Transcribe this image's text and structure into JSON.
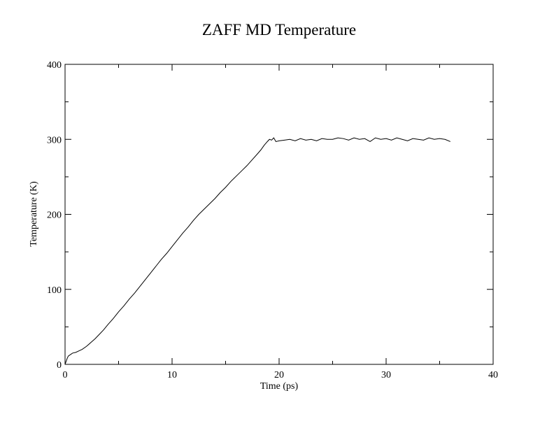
{
  "chart_data": {
    "type": "line",
    "title": "ZAFF MD Temperature",
    "xlabel": "Time (ps)",
    "ylabel": "Temperature (K)",
    "xlim": [
      0,
      40
    ],
    "ylim": [
      0,
      400
    ],
    "x_ticks": [
      0,
      10,
      20,
      30,
      40
    ],
    "y_ticks": [
      0,
      100,
      200,
      300,
      400
    ],
    "x_minor_ticks": [
      5,
      15,
      25,
      35
    ],
    "y_minor_ticks": [
      50,
      150,
      250,
      350
    ],
    "grid": false,
    "legend": "none",
    "line_color": "#000000",
    "series": [
      {
        "x": [
          0,
          0.1,
          0.2,
          0.3,
          0.5,
          0.7,
          1.0,
          1.3,
          1.6,
          2.0,
          2.4,
          2.8,
          3.2,
          3.6,
          4.0,
          4.5,
          5.0,
          5.5,
          6.0,
          6.5,
          7.0,
          7.5,
          8.0,
          8.5,
          9.0,
          9.5,
          10.0,
          10.5,
          11.0,
          11.5,
          12.0,
          12.5,
          13.0,
          13.5,
          14.0,
          14.5,
          15.0,
          15.5,
          16.0,
          16.5,
          17.0,
          17.5,
          18.0,
          18.3,
          18.6,
          18.9,
          19.1,
          19.3,
          19.5,
          19.7,
          20.0,
          20.5,
          21.0,
          21.5,
          22.0,
          22.5,
          23.0,
          23.5,
          24.0,
          24.5,
          25.0,
          25.5,
          26.0,
          26.5,
          27.0,
          27.5,
          28.0,
          28.5,
          29.0,
          29.5,
          30.0,
          30.5,
          31.0,
          31.5,
          32.0,
          32.5,
          33.0,
          33.5,
          34.0,
          34.5,
          35.0,
          35.5,
          36.0
        ],
        "y": [
          0,
          4,
          8,
          11,
          13,
          15,
          16,
          18,
          20,
          24,
          29,
          34,
          40,
          46,
          53,
          61,
          70,
          78,
          87,
          95,
          104,
          113,
          122,
          131,
          140,
          148,
          157,
          166,
          175,
          183,
          192,
          200,
          207,
          214,
          221,
          229,
          236,
          244,
          251,
          258,
          265,
          273,
          281,
          286,
          292,
          297,
          300,
          299,
          302,
          297,
          298,
          299,
          300,
          298,
          301,
          299,
          300,
          298,
          301,
          300,
          300,
          302,
          301,
          299,
          302,
          300,
          301,
          297,
          302,
          300,
          301,
          299,
          302,
          300,
          298,
          301,
          300,
          299,
          302,
          300,
          301,
          300,
          297
        ]
      }
    ]
  }
}
